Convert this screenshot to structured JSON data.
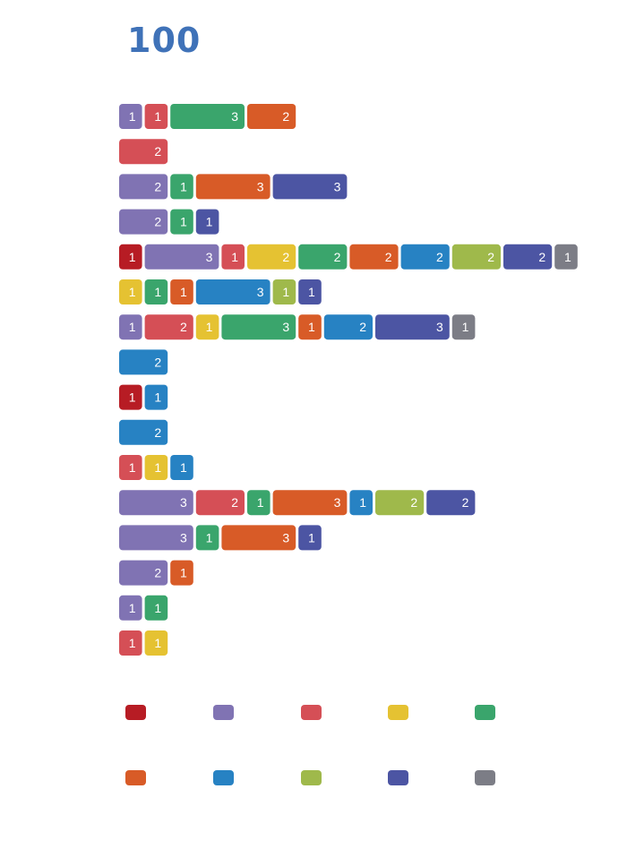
{
  "title": "100",
  "colors": [
    "#b71c24",
    "#8073b3",
    "#d54f56",
    "#e5c232",
    "#3aa56c",
    "#d85b27",
    "#2782c3",
    "#9fb94b",
    "#4c55a3",
    "#7c7d86"
  ],
  "chart_data": {
    "type": "bar",
    "orientation": "horizontal",
    "stacked": true,
    "legend": {
      "placement": "bottom",
      "entries": [
        "",
        "",
        "",
        "",
        "",
        "",
        "",
        "",
        "",
        ""
      ]
    },
    "rows": [
      [
        {
          "c": 1,
          "v": 1
        },
        {
          "c": 2,
          "v": 1
        },
        {
          "c": 4,
          "v": 3
        },
        {
          "c": 5,
          "v": 2
        }
      ],
      [
        {
          "c": 2,
          "v": 2
        }
      ],
      [
        {
          "c": 1,
          "v": 2
        },
        {
          "c": 4,
          "v": 1
        },
        {
          "c": 5,
          "v": 3
        },
        {
          "c": 8,
          "v": 3
        }
      ],
      [
        {
          "c": 1,
          "v": 2
        },
        {
          "c": 4,
          "v": 1
        },
        {
          "c": 8,
          "v": 1
        }
      ],
      [
        {
          "c": 0,
          "v": 1
        },
        {
          "c": 1,
          "v": 3
        },
        {
          "c": 2,
          "v": 1
        },
        {
          "c": 3,
          "v": 2
        },
        {
          "c": 4,
          "v": 2
        },
        {
          "c": 5,
          "v": 2
        },
        {
          "c": 6,
          "v": 2
        },
        {
          "c": 7,
          "v": 2
        },
        {
          "c": 8,
          "v": 2
        },
        {
          "c": 9,
          "v": 1
        }
      ],
      [
        {
          "c": 3,
          "v": 1
        },
        {
          "c": 4,
          "v": 1
        },
        {
          "c": 5,
          "v": 1
        },
        {
          "c": 6,
          "v": 3
        },
        {
          "c": 7,
          "v": 1
        },
        {
          "c": 8,
          "v": 1
        }
      ],
      [
        {
          "c": 1,
          "v": 1
        },
        {
          "c": 2,
          "v": 2
        },
        {
          "c": 3,
          "v": 1
        },
        {
          "c": 4,
          "v": 3
        },
        {
          "c": 5,
          "v": 1
        },
        {
          "c": 6,
          "v": 2
        },
        {
          "c": 8,
          "v": 3
        },
        {
          "c": 9,
          "v": 1
        }
      ],
      [
        {
          "c": 6,
          "v": 2
        }
      ],
      [
        {
          "c": 0,
          "v": 1
        },
        {
          "c": 6,
          "v": 1
        }
      ],
      [
        {
          "c": 6,
          "v": 2
        }
      ],
      [
        {
          "c": 2,
          "v": 1
        },
        {
          "c": 3,
          "v": 1
        },
        {
          "c": 6,
          "v": 1
        }
      ],
      [
        {
          "c": 1,
          "v": 3
        },
        {
          "c": 2,
          "v": 2
        },
        {
          "c": 4,
          "v": 1
        },
        {
          "c": 5,
          "v": 3
        },
        {
          "c": 6,
          "v": 1
        },
        {
          "c": 7,
          "v": 2
        },
        {
          "c": 8,
          "v": 2
        }
      ],
      [
        {
          "c": 1,
          "v": 3
        },
        {
          "c": 4,
          "v": 1
        },
        {
          "c": 5,
          "v": 3
        },
        {
          "c": 8,
          "v": 1
        }
      ],
      [
        {
          "c": 1,
          "v": 2
        },
        {
          "c": 5,
          "v": 1
        }
      ],
      [
        {
          "c": 1,
          "v": 1
        },
        {
          "c": 4,
          "v": 1
        }
      ],
      [
        {
          "c": 2,
          "v": 1
        },
        {
          "c": 3,
          "v": 1
        }
      ]
    ]
  }
}
